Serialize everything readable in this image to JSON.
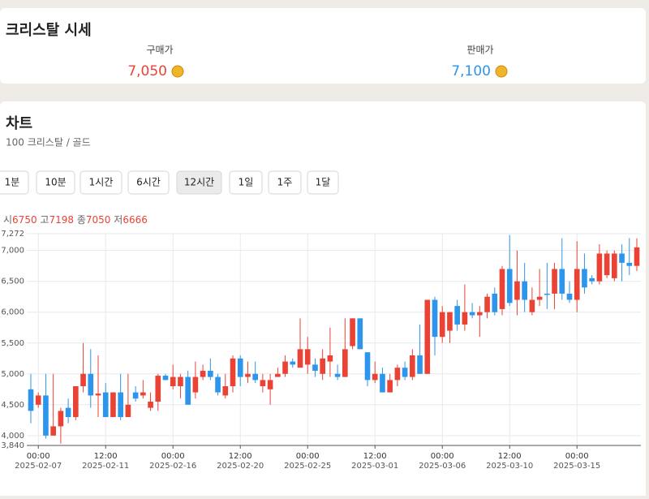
{
  "header": {
    "title": "크리스탈 시세",
    "buy_label": "구매가",
    "buy_price": "7,050",
    "sell_label": "판매가",
    "sell_price": "7,100"
  },
  "chart_section": {
    "title": "차트",
    "subtitle": "100 크리스탈 / 골드",
    "intervals": [
      {
        "label": "1분"
      },
      {
        "label": "10분"
      },
      {
        "label": "1시간"
      },
      {
        "label": "6시간"
      },
      {
        "label": "12시간",
        "selected": true
      },
      {
        "label": "1일"
      },
      {
        "label": "1주"
      },
      {
        "label": "1달"
      }
    ]
  },
  "chart_data": {
    "type": "candlestick",
    "summary": {
      "open_label": "시",
      "open": 6750,
      "high_label": "고",
      "high": 7198,
      "close_label": "종",
      "close": 7050,
      "low_label": "저",
      "low": 6666
    },
    "categories": [
      null,
      "00:00",
      null,
      null,
      null,
      null,
      null,
      null,
      null,
      null,
      "12:00",
      null,
      null,
      null,
      null,
      null,
      null,
      null,
      null,
      "00:00",
      null,
      null,
      null,
      null,
      null,
      null,
      null,
      null,
      "12:00",
      null,
      null,
      null,
      null,
      null,
      null,
      null,
      null,
      "00:00",
      null,
      null,
      null,
      null,
      null,
      null,
      null,
      null,
      "12:00",
      null,
      null,
      null,
      null,
      null,
      null,
      null,
      null,
      "00:00",
      null,
      null,
      null,
      null,
      null,
      null,
      null,
      null,
      "12:00",
      null,
      null,
      null,
      null,
      null,
      null,
      null,
      null,
      "00:00",
      null,
      null,
      null,
      null,
      null,
      null,
      null,
      null
    ],
    "dates": [
      null,
      "2025-02-07",
      null,
      null,
      null,
      null,
      null,
      null,
      null,
      null,
      "2025-02-11",
      null,
      null,
      null,
      null,
      null,
      null,
      null,
      null,
      "2025-02-16",
      null,
      null,
      null,
      null,
      null,
      null,
      null,
      null,
      "2025-02-20",
      null,
      null,
      null,
      null,
      null,
      null,
      null,
      null,
      "2025-02-25",
      null,
      null,
      null,
      null,
      null,
      null,
      null,
      null,
      "2025-03-01",
      null,
      null,
      null,
      null,
      null,
      null,
      null,
      null,
      "2025-03-06",
      null,
      null,
      null,
      null,
      null,
      null,
      null,
      null,
      "2025-03-10",
      null,
      null,
      null,
      null,
      null,
      null,
      null,
      null,
      "2025-03-15",
      null,
      null,
      null,
      null,
      null,
      null,
      null,
      null
    ],
    "open": [
      4750,
      4500,
      4650,
      4000,
      4150,
      4450,
      4300,
      4800,
      5000,
      4650,
      4700,
      4300,
      4700,
      4300,
      4700,
      4650,
      4450,
      4550,
      4970,
      4800,
      4800,
      4950,
      4700,
      4950,
      5050,
      4950,
      4650,
      4800,
      5250,
      4950,
      5000,
      4800,
      4750,
      4950,
      5000,
      5200,
      5100,
      5150,
      5150,
      5000,
      5200,
      5000,
      4950,
      5450,
      5900,
      5350,
      4900,
      5000,
      4700,
      4900,
      5100,
      4950,
      5300,
      5000,
      6200,
      5600,
      5700,
      6100,
      5800,
      6000,
      5950,
      6000,
      6300,
      6050,
      6700,
      6200,
      6500,
      6000,
      6200,
      6300,
      6300,
      6700,
      6300,
      6200,
      6700,
      6550,
      6500,
      6600,
      6550,
      6950,
      6800,
      6750
    ],
    "high": [
      5000,
      4700,
      5000,
      5000,
      4450,
      4600,
      4800,
      5500,
      5400,
      5300,
      4850,
      4700,
      5000,
      5000,
      4800,
      4900,
      4700,
      5000,
      5000,
      5150,
      5000,
      5050,
      5200,
      5150,
      5250,
      5000,
      5000,
      5300,
      5300,
      5200,
      5200,
      5000,
      5000,
      5100,
      5300,
      5250,
      5900,
      5600,
      5250,
      5400,
      5750,
      5150,
      5900,
      5900,
      5900,
      5350,
      5200,
      5100,
      5000,
      5150,
      5200,
      5400,
      5800,
      6200,
      6250,
      6100,
      6000,
      6200,
      6450,
      6150,
      6100,
      6300,
      6400,
      6750,
      7250,
      7000,
      6800,
      6400,
      6700,
      6800,
      6800,
      7200,
      6500,
      7150,
      6950,
      6600,
      7100,
      7000,
      7000,
      7100,
      7200,
      7198
    ],
    "low": [
      4200,
      4450,
      3950,
      4000,
      3870,
      4200,
      4250,
      4700,
      4450,
      4300,
      4300,
      4300,
      4250,
      4300,
      4550,
      4600,
      4400,
      4400,
      4900,
      4750,
      4600,
      4500,
      4600,
      4900,
      4900,
      4650,
      4600,
      4700,
      4800,
      4850,
      4850,
      4700,
      4500,
      4950,
      4950,
      5100,
      5100,
      5000,
      4950,
      4900,
      4950,
      4900,
      4950,
      5400,
      5400,
      4800,
      4850,
      4700,
      4700,
      4800,
      4900,
      4900,
      5000,
      5000,
      5300,
      5500,
      5500,
      5700,
      5700,
      5900,
      5600,
      5900,
      5950,
      5950,
      6100,
      5950,
      6000,
      5950,
      6100,
      6050,
      6050,
      6200,
      6150,
      6000,
      6300,
      6450,
      6450,
      6550,
      6500,
      6500,
      6600,
      6666
    ],
    "close": [
      4400,
      4650,
      4000,
      4150,
      4400,
      4300,
      4800,
      5000,
      4650,
      4680,
      4300,
      4700,
      4300,
      4500,
      4600,
      4700,
      4550,
      4970,
      4900,
      4950,
      4950,
      4500,
      4950,
      5050,
      4950,
      4700,
      4800,
      5250,
      4950,
      5000,
      4900,
      4900,
      4900,
      5000,
      5200,
      5150,
      5400,
      5400,
      5050,
      5250,
      5300,
      4950,
      5400,
      5900,
      5400,
      4900,
      5000,
      4700,
      4900,
      5100,
      4950,
      5300,
      5000,
      6200,
      5600,
      6000,
      6000,
      5800,
      6000,
      5950,
      6000,
      6250,
      6000,
      6700,
      6150,
      6500,
      6200,
      6200,
      6250,
      6280,
      6700,
      6300,
      6200,
      6700,
      6400,
      6500,
      6950,
      6950,
      6950,
      6800,
      6750,
      7050
    ],
    "up_color": "#ea4335",
    "down_color": "#2d95ec",
    "ylim": [
      3840,
      7272
    ],
    "yticks": [
      {
        "value": 3840,
        "label": "3,840"
      },
      {
        "value": 4000,
        "label": "4,000"
      },
      {
        "value": 4500,
        "label": "4,500"
      },
      {
        "value": 5000,
        "label": "5,000"
      },
      {
        "value": 5500,
        "label": "5,500"
      },
      {
        "value": 6000,
        "label": "6,000"
      },
      {
        "value": 6500,
        "label": "6,500"
      },
      {
        "value": 7000,
        "label": "7,000"
      },
      {
        "value": 7272,
        "label": "7,272"
      }
    ],
    "grid": true
  }
}
